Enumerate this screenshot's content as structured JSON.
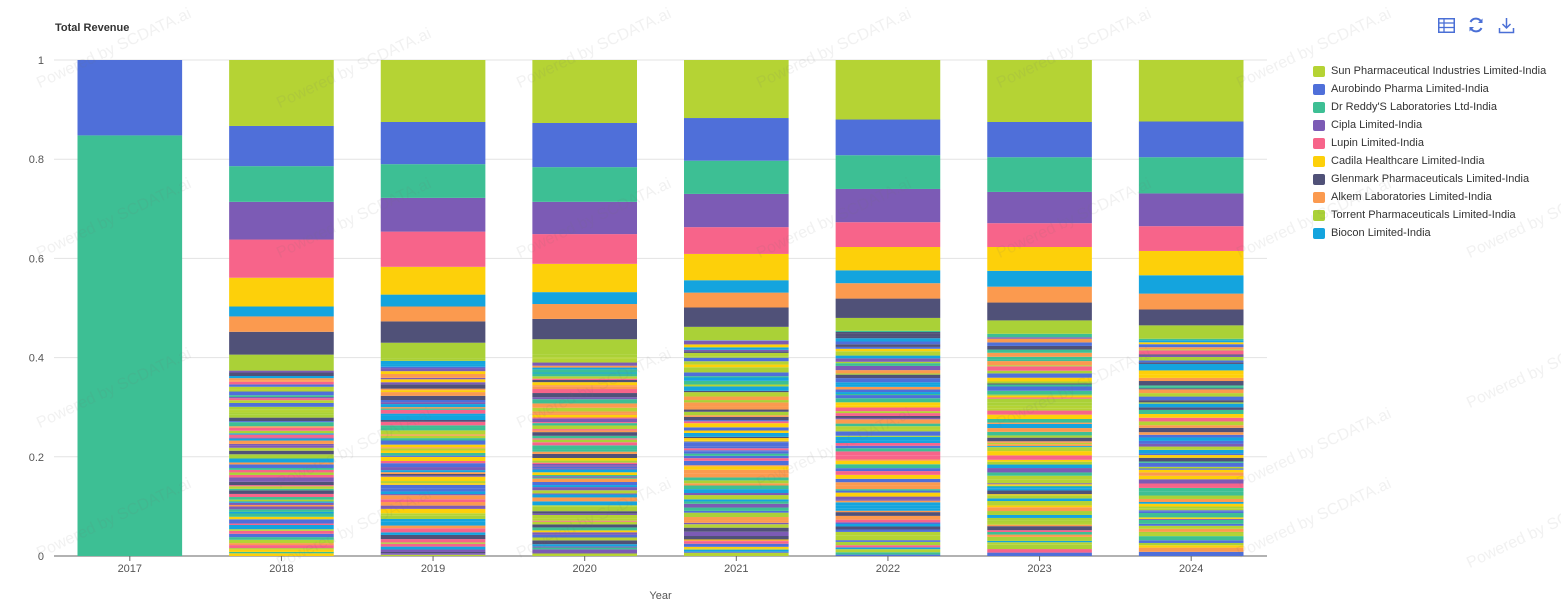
{
  "toolbar": {
    "icons": [
      "table-icon",
      "refresh-icon",
      "download-icon"
    ]
  },
  "watermark_text": "Powered by SCDATA.ai",
  "chart_data": {
    "type": "bar",
    "stacked": true,
    "normalized": true,
    "title": "Total Revenue",
    "xlabel": "Year",
    "ylabel": "",
    "ylim": [
      0,
      1
    ],
    "yticks": [
      "0",
      "0.2",
      "0.4",
      "0.6",
      "0.8",
      "1"
    ],
    "categories": [
      "2017",
      "2018",
      "2019",
      "2020",
      "2021",
      "2022",
      "2023",
      "2024"
    ],
    "grid": true,
    "legend_position": "right",
    "series": [
      {
        "name": "Sun Pharmaceutical Industries Limited-India",
        "color": "#b5d334",
        "values": [
          0,
          0.133,
          0.125,
          0.127,
          0.117,
          0.12,
          0.125,
          0.124
        ]
      },
      {
        "name": "Aurobindo Pharma Limited-India",
        "color": "#4f6fd9",
        "values": [
          0.152,
          0.081,
          0.085,
          0.089,
          0.086,
          0.072,
          0.071,
          0.072
        ]
      },
      {
        "name": "Dr Reddy'S Laboratories Ltd-India",
        "color": "#3dbf94",
        "values": [
          0.848,
          0.072,
          0.068,
          0.07,
          0.067,
          0.068,
          0.07,
          0.073
        ]
      },
      {
        "name": "Cipla Limited-India",
        "color": "#7c5bb5",
        "values": [
          0,
          0.076,
          0.068,
          0.065,
          0.067,
          0.067,
          0.063,
          0.066
        ]
      },
      {
        "name": "Lupin Limited-India",
        "color": "#f7648a",
        "values": [
          0,
          0.077,
          0.071,
          0.06,
          0.054,
          0.05,
          0.048,
          0.05
        ]
      },
      {
        "name": "Cadila Healthcare Limited-India",
        "color": "#fdd00a",
        "values": [
          0,
          0.058,
          0.056,
          0.057,
          0.053,
          0.047,
          0.048,
          0.049
        ]
      },
      {
        "name": "Biocon Limited-India",
        "color": "#14a4de",
        "values": [
          0,
          0.02,
          0.024,
          0.024,
          0.025,
          0.026,
          0.032,
          0.037
        ]
      },
      {
        "name": "Alkem Laboratories Limited-India",
        "color": "#fb9a4f",
        "values": [
          0,
          0.031,
          0.03,
          0.03,
          0.03,
          0.031,
          0.032,
          0.032
        ]
      },
      {
        "name": "Glenmark Pharmaceuticals Limited-India",
        "color": "#505178",
        "values": [
          0,
          0.046,
          0.043,
          0.041,
          0.039,
          0.039,
          0.036,
          0.032
        ]
      },
      {
        "name": "Torrent Pharmaceuticals Limited-India",
        "color": "#aad137",
        "values": [
          0,
          0.03,
          0.032,
          0.031,
          0.027,
          0.026,
          0.027,
          0.027
        ]
      }
    ],
    "legend_order": [
      "Sun Pharmaceutical Industries Limited-India",
      "Aurobindo Pharma Limited-India",
      "Dr Reddy'S Laboratories Ltd-India",
      "Cipla Limited-India",
      "Lupin Limited-India",
      "Cadila Healthcare Limited-India",
      "Glenmark Pharmaceuticals Limited-India",
      "Alkem Laboratories Limited-India",
      "Torrent Pharmaceuticals Limited-India",
      "Biocon Limited-India"
    ],
    "minor_series_palette": [
      "#b5d334",
      "#4f6fd9",
      "#3dbf94",
      "#7c5bb5",
      "#f7648a",
      "#fdd00a",
      "#505178",
      "#fb9a4f",
      "#aad137",
      "#14a4de"
    ]
  }
}
